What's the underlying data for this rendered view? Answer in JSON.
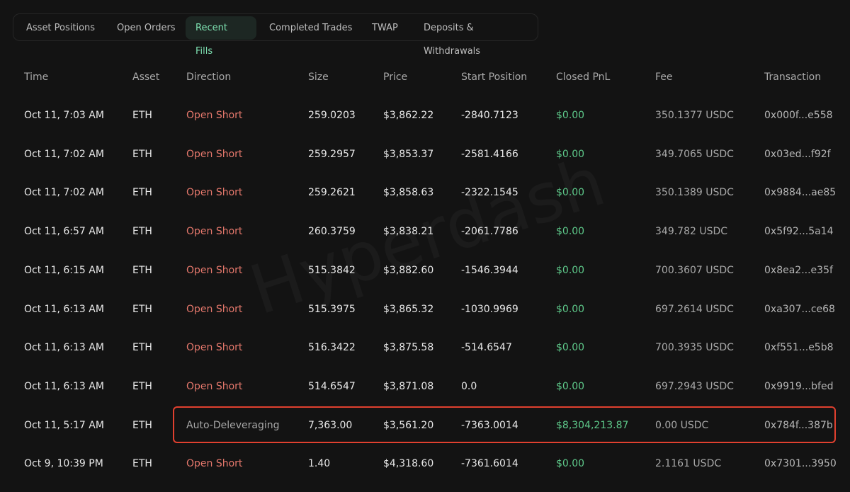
{
  "tabs": [
    "Asset Positions",
    "Open Orders",
    "Recent Fills",
    "Completed Trades",
    "TWAP",
    "Deposits & Withdrawals"
  ],
  "watermark": "Hyperdash",
  "table": {
    "headers": [
      "Time",
      "Asset",
      "Direction",
      "Size",
      "Price",
      "Start Position",
      "Closed PnL",
      "Fee",
      "Transaction"
    ],
    "rows": [
      [
        "Oct 11, 7:03 AM",
        "ETH",
        "Open Short",
        "259.0203",
        "$3,862.22",
        "-2840.7123",
        "$0.00",
        "350.1377 USDC",
        "0x000f...e558"
      ],
      [
        "Oct 11, 7:02 AM",
        "ETH",
        "Open Short",
        "259.2957",
        "$3,853.37",
        "-2581.4166",
        "$0.00",
        "349.7065 USDC",
        "0x03ed...f92f"
      ],
      [
        "Oct 11, 7:02 AM",
        "ETH",
        "Open Short",
        "259.2621",
        "$3,858.63",
        "-2322.1545",
        "$0.00",
        "350.1389 USDC",
        "0x9884...ae85"
      ],
      [
        "Oct 11, 6:57 AM",
        "ETH",
        "Open Short",
        "260.3759",
        "$3,838.21",
        "-2061.7786",
        "$0.00",
        "349.782 USDC",
        "0x5f92...5a14"
      ],
      [
        "Oct 11, 6:15 AM",
        "ETH",
        "Open Short",
        "515.3842",
        "$3,882.60",
        "-1546.3944",
        "$0.00",
        "700.3607 USDC",
        "0x8ea2...e35f"
      ],
      [
        "Oct 11, 6:13 AM",
        "ETH",
        "Open Short",
        "515.3975",
        "$3,865.32",
        "-1030.9969",
        "$0.00",
        "697.2614 USDC",
        "0xa307...ce68"
      ],
      [
        "Oct 11, 6:13 AM",
        "ETH",
        "Open Short",
        "516.3422",
        "$3,875.58",
        "-514.6547",
        "$0.00",
        "700.3935 USDC",
        "0xf551...e5b8"
      ],
      [
        "Oct 11, 6:13 AM",
        "ETH",
        "Open Short",
        "514.6547",
        "$3,871.08",
        "0.0",
        "$0.00",
        "697.2943 USDC",
        "0x9919...bfed"
      ],
      [
        "Oct 11, 5:17 AM",
        "ETH",
        "Auto-Deleveraging",
        "7,363.00",
        "$3,561.20",
        "-7363.0014",
        "$8,304,213.87",
        "0.00 USDC",
        "0x784f...387b"
      ],
      [
        "Oct 9, 10:39 PM",
        "ETH",
        "Open Short",
        "1.40",
        "$4,318.60",
        "-7361.6014",
        "$0.00",
        "2.1161 USDC",
        "0x7301...3950"
      ]
    ]
  }
}
